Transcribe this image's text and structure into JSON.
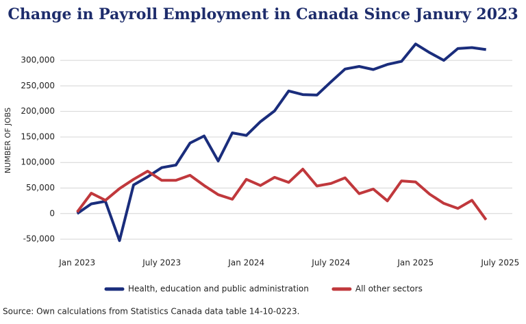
{
  "chart_data": {
    "type": "line",
    "title": "Change in Payroll Employment in Canada Since Janury 2023",
    "y_axis_label": "NUMBER OF JOBS",
    "note": "Source: Own calculations from Statistics Canada data table 14-10-0223.",
    "categories": [
      "Jan 2023",
      null,
      null,
      null,
      null,
      null,
      "July 2023",
      null,
      null,
      null,
      null,
      null,
      "Jan 2024",
      null,
      null,
      null,
      null,
      null,
      "July 2024",
      null,
      null,
      null,
      null,
      null,
      "Jan 2025",
      null,
      null,
      null,
      null,
      null,
      "July 2025"
    ],
    "series": [
      {
        "name": "Health, education and public administration",
        "color": "#1a2d7c",
        "values": [
          0,
          19000,
          24000,
          -53000,
          56000,
          72000,
          90000,
          95000,
          138000,
          152000,
          103000,
          158000,
          153000,
          180000,
          201000,
          240000,
          233000,
          232000,
          258000,
          283000,
          288000,
          282000,
          292000,
          298000,
          332000,
          315000,
          300000,
          323000,
          325000,
          321000,
          null
        ]
      },
      {
        "name": "All other sectors",
        "color": "#c0383c",
        "values": [
          3000,
          40000,
          26000,
          49000,
          67000,
          83000,
          65000,
          65000,
          75000,
          55000,
          37000,
          28000,
          67000,
          55000,
          71000,
          61000,
          87000,
          54000,
          59000,
          70000,
          39000,
          48000,
          25000,
          64000,
          62000,
          38000,
          20000,
          10000,
          26000,
          -12000,
          null
        ]
      }
    ],
    "ylim": [
      -70000,
      335000
    ],
    "yticks": [
      {
        "value": -50000,
        "label": "-50,000"
      },
      0,
      {
        "value": 50000,
        "label": "50,000"
      },
      {
        "value": 100000,
        "label": "100,000"
      },
      {
        "value": 150000,
        "label": "150,000"
      },
      {
        "value": 200000,
        "label": "200,000"
      },
      {
        "value": 250000,
        "label": "250,000"
      },
      {
        "value": 300000,
        "label": "300,000"
      }
    ],
    "grid": true,
    "legend": "bottom"
  }
}
